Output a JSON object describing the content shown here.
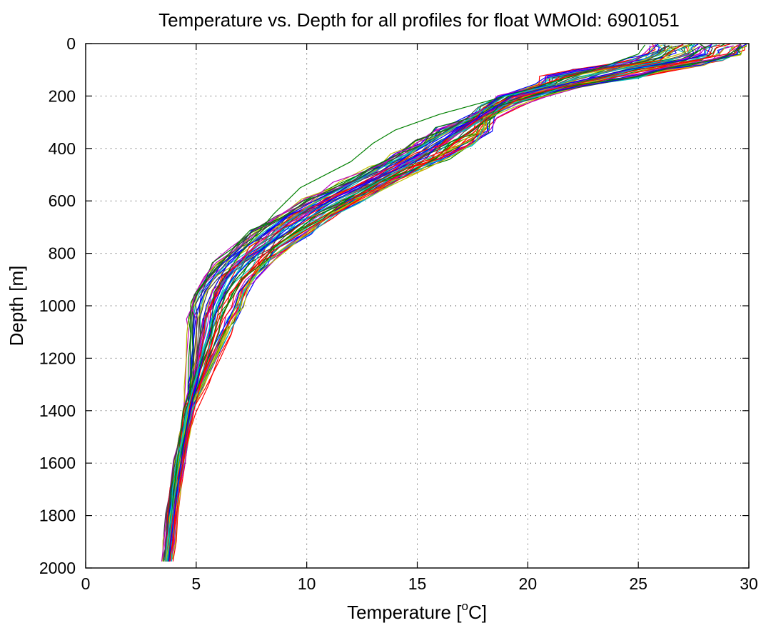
{
  "chart_data": {
    "type": "line",
    "title": "Temperature vs. Depth for all profiles for float WMOId: 6901051",
    "xlabel_main": "Temperature [",
    "xlabel_sup": "o",
    "xlabel_end": "C]",
    "ylabel": "Depth [m]",
    "xlim": [
      0,
      30
    ],
    "ylim": [
      0,
      2000
    ],
    "y_reversed": true,
    "grid": true,
    "legend": "none",
    "x_ticks": [
      0,
      5,
      10,
      15,
      20,
      25,
      30
    ],
    "x_tick_labels": [
      "0",
      "5",
      "10",
      "15",
      "20",
      "25",
      "30"
    ],
    "y_ticks": [
      0,
      200,
      400,
      600,
      800,
      1000,
      1200,
      1400,
      1600,
      1800,
      2000
    ],
    "y_tick_labels": [
      "0",
      "200",
      "400",
      "600",
      "800",
      "1000",
      "1200",
      "1400",
      "1600",
      "1800",
      "2000"
    ],
    "series_colors": [
      "#0000ff",
      "#008000",
      "#ff0000",
      "#00bfbf",
      "#bf00bf",
      "#bfbf00",
      "#404040"
    ],
    "profile_count": 60,
    "series": [
      {
        "depth": [
          5,
          40,
          60,
          100,
          200,
          280,
          400,
          500,
          600,
          700,
          800,
          900,
          1000,
          1200,
          1400,
          1600,
          1800,
          1975
        ],
        "temperature": [
          28.3,
          28.1,
          27.2,
          24.5,
          19.3,
          17.8,
          15.6,
          13.4,
          11.0,
          9.2,
          7.8,
          6.6,
          6.0,
          5.3,
          4.7,
          4.3,
          4.0,
          3.75
        ]
      },
      {
        "depth": [
          5,
          40,
          100,
          200,
          270,
          330,
          380,
          450,
          550,
          650,
          800,
          950,
          1100,
          1400,
          1700,
          1975
        ],
        "temperature": [
          25.3,
          25.0,
          23.0,
          19.0,
          16.0,
          14.0,
          13.0,
          12.0,
          9.7,
          8.5,
          7.0,
          5.8,
          5.7,
          4.4,
          4.0,
          3.7
        ]
      },
      {
        "depth": [
          5,
          40,
          60,
          100,
          200,
          280,
          400,
          500,
          600,
          700,
          800,
          900,
          1000,
          1200,
          1400,
          1600,
          1800,
          1975
        ],
        "temperature": [
          29.5,
          29.0,
          27.8,
          25.0,
          19.8,
          18.2,
          16.4,
          14.6,
          12.3,
          10.2,
          8.3,
          7.0,
          6.2,
          5.5,
          4.9,
          4.4,
          4.1,
          3.8
        ]
      },
      {
        "depth": [
          5,
          40,
          60,
          100,
          200,
          280,
          400,
          500,
          600,
          700,
          800,
          900,
          1000,
          1200,
          1400,
          1600,
          1800,
          1975
        ],
        "temperature": [
          27.5,
          27.2,
          26.5,
          24.0,
          19.0,
          17.5,
          15.0,
          12.8,
          10.5,
          8.8,
          7.4,
          6.4,
          5.9,
          5.2,
          4.6,
          4.2,
          3.9,
          3.7
        ]
      }
    ]
  }
}
